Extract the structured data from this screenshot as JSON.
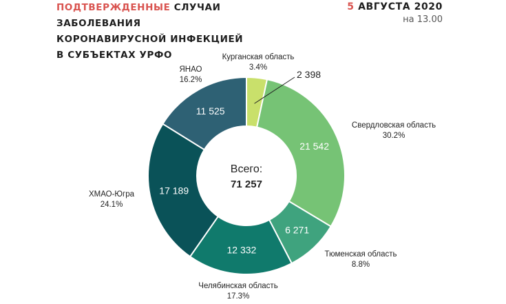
{
  "header": {
    "title_accent": "ПОДТВЕРЖДЕННЫЕ",
    "title_line1_rest": " СЛУЧАИ",
    "title_line2": "ЗАБОЛЕВАНИЯ",
    "title_line3": "КОРОНАВИРУСНОЙ ИНФЕКЦИЕЙ",
    "title_line4": "В СУБЪЕКТАХ УРФО",
    "date_day": "5",
    "date_rest": " АВГУСТА 2020",
    "time": "на 13.00",
    "accent_color": "#d9534f"
  },
  "chart_data": {
    "type": "pie",
    "donut": true,
    "center_label": "Всего:",
    "center_total": "71 257",
    "slices": [
      {
        "name": "Курганская область",
        "value": 2398,
        "value_label": "2 398",
        "percent": "3.4%",
        "color": "#c9e06b"
      },
      {
        "name": "Свердловская область",
        "value": 21542,
        "value_label": "21 542",
        "percent": "30.2%",
        "color": "#76c375"
      },
      {
        "name": "Тюменская область",
        "value": 6271,
        "value_label": "6 271",
        "percent": "8.8%",
        "color": "#3fa37e"
      },
      {
        "name": "Челябинская область",
        "value": 12332,
        "value_label": "12 332",
        "percent": "17.3%",
        "color": "#107a6c"
      },
      {
        "name": "ХМАО-Югра",
        "value": 17189,
        "value_label": "17 189",
        "percent": "24.1%",
        "color": "#0a5258"
      },
      {
        "name": "ЯНАО",
        "value": 11525,
        "value_label": "11 525",
        "percent": "16.2%",
        "color": "#2e6174"
      }
    ]
  }
}
